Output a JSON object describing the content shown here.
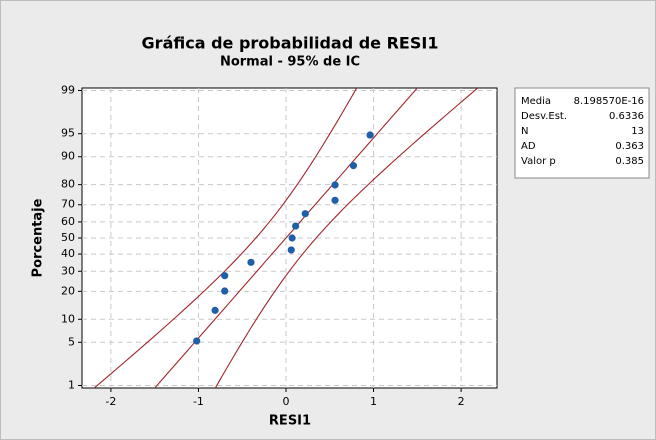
{
  "chart_data": {
    "type": "probability",
    "title": "Gráfica de probabilidad de RESI1",
    "subtitle": "Normal - 95% de IC",
    "x_label": "RESI1",
    "y_label": "Porcentaje",
    "x": [
      -1.02,
      -0.81,
      -0.7,
      -0.7,
      -0.4,
      0.06,
      0.07,
      0.11,
      0.22,
      0.56,
      0.56,
      0.77,
      0.96
    ],
    "values": [
      5.22,
      12.69,
      20.15,
      27.61,
      35.07,
      42.54,
      50,
      57.46,
      64.93,
      72.39,
      79.85,
      87.31,
      94.78
    ],
    "color": "#1f5fa8",
    "line_color": "#a0262a",
    "xlim": [
      -2.33,
      2.41
    ],
    "xticks": [
      -2,
      -1,
      0,
      1,
      2
    ],
    "ylim": [
      0.9,
      99.1
    ],
    "yticks": [
      1,
      5,
      10,
      20,
      30,
      40,
      50,
      60,
      70,
      80,
      90,
      95,
      99
    ],
    "yscale": "probability",
    "confidence": 95,
    "grid": true,
    "stats": [
      {
        "label": "Media",
        "value": {
          "value": 8.19857e-16,
          "label": "8.198570E-16"
        }
      },
      {
        "label": "Desv.Est.",
        "value": 0.6336
      },
      {
        "label": "N",
        "value": 13
      },
      {
        "label": "AD",
        "value": 0.363
      },
      {
        "label": "Valor p",
        "value": 0.385
      }
    ]
  }
}
